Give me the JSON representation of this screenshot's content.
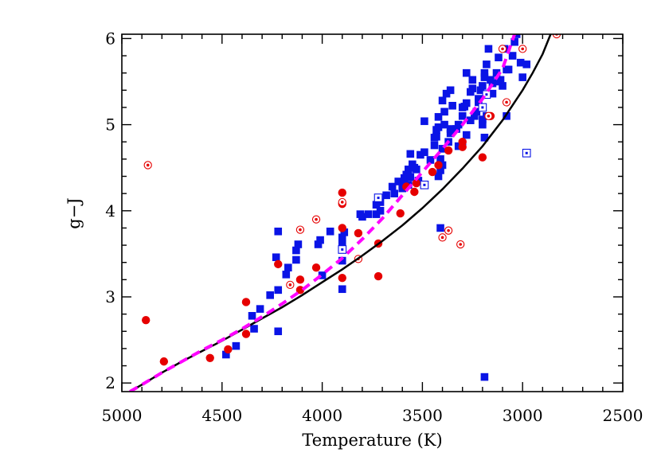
{
  "chart_data": {
    "type": "scatter",
    "xlabel": "Temperature (K)",
    "ylabel": "g−J",
    "xlim": [
      5000,
      2500
    ],
    "ylim": [
      1.9,
      6.05
    ],
    "x_ticks": [
      5000,
      4500,
      4000,
      3500,
      3000,
      2500
    ],
    "y_ticks": [
      2,
      3,
      4,
      5,
      6
    ],
    "grid": false,
    "colors": {
      "blue": "#0a14e6",
      "red": "#e60000",
      "magenta": "#ff00ff",
      "black": "#000000"
    },
    "series": [
      {
        "marker": "filled-square",
        "color": "#0a14e6",
        "points": [
          [
            4480,
            2.33
          ],
          [
            4430,
            2.43
          ],
          [
            4340,
            2.63
          ],
          [
            4350,
            2.78
          ],
          [
            4310,
            2.86
          ],
          [
            4260,
            3.02
          ],
          [
            4220,
            3.08
          ],
          [
            4220,
            2.6
          ],
          [
            4180,
            3.26
          ],
          [
            4170,
            3.34
          ],
          [
            4230,
            3.46
          ],
          [
            4220,
            3.76
          ],
          [
            4130,
            3.43
          ],
          [
            4130,
            3.54
          ],
          [
            4120,
            3.61
          ],
          [
            4000,
            3.25
          ],
          [
            4020,
            3.61
          ],
          [
            4010,
            3.66
          ],
          [
            3960,
            3.76
          ],
          [
            3900,
            3.61
          ],
          [
            3900,
            3.69
          ],
          [
            3890,
            3.75
          ],
          [
            3900,
            3.42
          ],
          [
            3900,
            3.09
          ],
          [
            3800,
            3.93
          ],
          [
            3810,
            3.96
          ],
          [
            3770,
            3.96
          ],
          [
            3730,
            3.96
          ],
          [
            3730,
            4.07
          ],
          [
            3710,
            4.1
          ],
          [
            3680,
            4.18
          ],
          [
            3650,
            4.28
          ],
          [
            3640,
            4.2
          ],
          [
            3620,
            4.34
          ],
          [
            3600,
            4.3
          ],
          [
            3590,
            4.38
          ],
          [
            3580,
            4.42
          ],
          [
            3570,
            4.45
          ],
          [
            3570,
            4.48
          ],
          [
            3560,
            4.39
          ],
          [
            3550,
            4.54
          ],
          [
            3540,
            4.5
          ],
          [
            3530,
            4.48
          ],
          [
            3520,
            4.35
          ],
          [
            3560,
            4.66
          ],
          [
            3510,
            4.65
          ],
          [
            3490,
            4.68
          ],
          [
            3490,
            5.04
          ],
          [
            3460,
            4.59
          ],
          [
            3440,
            4.76
          ],
          [
            3440,
            4.85
          ],
          [
            3430,
            4.86
          ],
          [
            3430,
            4.94
          ],
          [
            3420,
            4.97
          ],
          [
            3420,
            5.09
          ],
          [
            3420,
            4.4
          ],
          [
            3410,
            4.47
          ],
          [
            3410,
            4.6
          ],
          [
            3400,
            4.53
          ],
          [
            3400,
            4.72
          ],
          [
            3390,
            5.0
          ],
          [
            3390,
            5.15
          ],
          [
            3370,
            4.8
          ],
          [
            3360,
            4.9
          ],
          [
            3350,
            5.22
          ],
          [
            3330,
            4.95
          ],
          [
            3320,
            5.0
          ],
          [
            3300,
            5.1
          ],
          [
            3290,
            5.21
          ],
          [
            3280,
            5.25
          ],
          [
            3260,
            5.38
          ],
          [
            3250,
            5.42
          ],
          [
            3230,
            5.15
          ],
          [
            3220,
            5.3
          ],
          [
            3210,
            5.4
          ],
          [
            3200,
            5.45
          ],
          [
            3190,
            5.55
          ],
          [
            3190,
            5.6
          ],
          [
            3180,
            5.7
          ],
          [
            3170,
            5.88
          ],
          [
            3160,
            5.52
          ],
          [
            3150,
            5.36
          ],
          [
            3130,
            5.6
          ],
          [
            3120,
            5.78
          ],
          [
            3110,
            5.52
          ],
          [
            3100,
            5.45
          ],
          [
            3090,
            5.88
          ],
          [
            3080,
            5.64
          ],
          [
            3070,
            5.64
          ],
          [
            3050,
            5.8
          ],
          [
            3040,
            5.96
          ],
          [
            3030,
            6.05
          ],
          [
            3010,
            5.72
          ],
          [
            3000,
            5.55
          ],
          [
            3200,
            5.0
          ],
          [
            3200,
            5.06
          ],
          [
            3190,
            4.85
          ],
          [
            3080,
            5.1
          ],
          [
            3320,
            4.75
          ],
          [
            3300,
            4.78
          ],
          [
            3260,
            5.05
          ],
          [
            3240,
            5.1
          ],
          [
            3400,
            5.28
          ],
          [
            3380,
            5.36
          ],
          [
            3360,
            5.4
          ],
          [
            3280,
            5.6
          ],
          [
            3250,
            5.52
          ],
          [
            3150,
            5.48
          ],
          [
            3120,
            5.5
          ],
          [
            3190,
            2.07
          ],
          [
            3410,
            3.8
          ],
          [
            2980,
            5.7
          ],
          [
            3570,
            4.3
          ],
          [
            3600,
            4.26
          ],
          [
            3710,
            4.0
          ],
          [
            3300,
            5.2
          ],
          [
            3220,
            5.26
          ],
          [
            3180,
            5.1
          ],
          [
            3280,
            4.88
          ],
          [
            3360,
            4.95
          ]
        ]
      },
      {
        "marker": "filled-circle",
        "color": "#e60000",
        "points": [
          [
            4880,
            2.73
          ],
          [
            4790,
            2.25
          ],
          [
            4560,
            2.29
          ],
          [
            4470,
            2.39
          ],
          [
            4380,
            2.94
          ],
          [
            4380,
            2.57
          ],
          [
            4220,
            3.38
          ],
          [
            4110,
            3.08
          ],
          [
            4110,
            3.2
          ],
          [
            4030,
            3.34
          ],
          [
            3900,
            4.21
          ],
          [
            3900,
            4.08
          ],
          [
            3900,
            3.8
          ],
          [
            3900,
            3.22
          ],
          [
            3820,
            3.74
          ],
          [
            3720,
            3.62
          ],
          [
            3720,
            3.24
          ],
          [
            3610,
            3.97
          ],
          [
            3580,
            4.28
          ],
          [
            3540,
            4.22
          ],
          [
            3530,
            4.32
          ],
          [
            3450,
            4.45
          ],
          [
            3420,
            4.53
          ],
          [
            3370,
            4.7
          ],
          [
            3300,
            4.74
          ],
          [
            3300,
            4.8
          ],
          [
            3200,
            4.62
          ],
          [
            3160,
            5.1
          ]
        ]
      },
      {
        "marker": "open-circle-dot",
        "color": "#e60000",
        "points": [
          [
            4870,
            4.53
          ],
          [
            4160,
            3.14
          ],
          [
            4110,
            3.78
          ],
          [
            4030,
            3.9
          ],
          [
            3900,
            4.1
          ],
          [
            3820,
            3.44
          ],
          [
            3400,
            3.69
          ],
          [
            3370,
            3.77
          ],
          [
            3310,
            3.61
          ],
          [
            3100,
            5.88
          ],
          [
            3080,
            5.26
          ],
          [
            3000,
            5.88
          ],
          [
            2830,
            6.05
          ],
          [
            3170,
            5.1
          ]
        ]
      },
      {
        "marker": "open-square-dot",
        "color": "#0a14e6",
        "points": [
          [
            3720,
            4.15
          ],
          [
            3490,
            4.3
          ],
          [
            3200,
            5.2
          ],
          [
            2980,
            4.67
          ],
          [
            3900,
            3.55
          ],
          [
            3180,
            5.35
          ]
        ]
      },
      {
        "line": "solid",
        "color": "#000000",
        "width": 2.5,
        "points": [
          [
            4960,
            1.9
          ],
          [
            4900,
            1.98
          ],
          [
            4800,
            2.12
          ],
          [
            4700,
            2.25
          ],
          [
            4600,
            2.37
          ],
          [
            4500,
            2.49
          ],
          [
            4400,
            2.62
          ],
          [
            4300,
            2.75
          ],
          [
            4200,
            2.88
          ],
          [
            4100,
            3.02
          ],
          [
            4000,
            3.17
          ],
          [
            3900,
            3.32
          ],
          [
            3800,
            3.48
          ],
          [
            3700,
            3.65
          ],
          [
            3600,
            3.83
          ],
          [
            3500,
            4.03
          ],
          [
            3400,
            4.25
          ],
          [
            3300,
            4.49
          ],
          [
            3200,
            4.75
          ],
          [
            3100,
            5.05
          ],
          [
            3000,
            5.4
          ],
          [
            2950,
            5.6
          ],
          [
            2900,
            5.82
          ],
          [
            2860,
            6.05
          ]
        ]
      },
      {
        "line": "dashed",
        "color": "#ff00ff",
        "width": 4,
        "points": [
          [
            4960,
            1.9
          ],
          [
            4900,
            1.98
          ],
          [
            4800,
            2.12
          ],
          [
            4700,
            2.25
          ],
          [
            4600,
            2.38
          ],
          [
            4500,
            2.5
          ],
          [
            4400,
            2.63
          ],
          [
            4300,
            2.77
          ],
          [
            4200,
            2.92
          ],
          [
            4100,
            3.08
          ],
          [
            4000,
            3.26
          ],
          [
            3900,
            3.45
          ],
          [
            3800,
            3.67
          ],
          [
            3700,
            3.91
          ],
          [
            3600,
            4.18
          ],
          [
            3500,
            4.45
          ],
          [
            3400,
            4.72
          ],
          [
            3300,
            5.0
          ],
          [
            3200,
            5.3
          ],
          [
            3100,
            5.65
          ],
          [
            3040,
            6.05
          ]
        ]
      }
    ]
  }
}
